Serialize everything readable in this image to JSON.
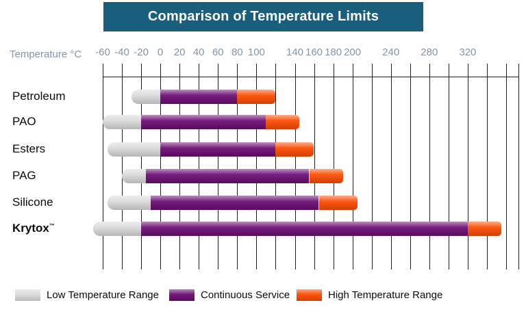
{
  "title_bar": {
    "text": "Comparison of Temperature Limits",
    "bg_color": "#1A5E7D",
    "text_color": "#ffffff"
  },
  "axis": {
    "label": "Temperature °C",
    "label_color": "#8295A8",
    "tick_values": [
      -60,
      -40,
      -20,
      0,
      20,
      40,
      60,
      80,
      100,
      140,
      160,
      180,
      200,
      240,
      280,
      320
    ],
    "grid_min": -60,
    "grid_max": 360,
    "grid_step": 20
  },
  "legend": {
    "items": [
      {
        "label": "Low Temperature Range",
        "color": "#d9d9d9"
      },
      {
        "label": "Continuous Service",
        "color": "#6b0b72"
      },
      {
        "label": "High Temperature Range",
        "color": "#fb4b00"
      }
    ]
  },
  "chart_data": {
    "type": "bar",
    "orientation": "horizontal",
    "title": "Comparison of Temperature Limits",
    "xlabel": "Temperature °C",
    "xlim": [
      -60,
      360
    ],
    "x_ticks": [
      -60,
      -40,
      -20,
      0,
      20,
      40,
      60,
      80,
      100,
      140,
      160,
      180,
      200,
      240,
      280,
      320
    ],
    "grid": true,
    "legend_position": "bottom",
    "categories": [
      "Petroleum",
      "PAO",
      "Esters",
      "PAG",
      "Silicone",
      "Krytox™"
    ],
    "colors": {
      "low": "#d9d9d9",
      "continuous": "#6b0b72",
      "high": "#fb4b00"
    },
    "rows": [
      {
        "label": "Petroleum",
        "trademark": "",
        "bold": false,
        "low_temperature_range": [
          -30,
          0
        ],
        "continuous_service": [
          0,
          80
        ],
        "high_temperature_range": [
          80,
          120
        ]
      },
      {
        "label": "PAO",
        "trademark": "",
        "bold": false,
        "low_temperature_range": [
          -60,
          -20
        ],
        "continuous_service": [
          -20,
          110
        ],
        "high_temperature_range": [
          110,
          145
        ]
      },
      {
        "label": "Esters",
        "trademark": "",
        "bold": false,
        "low_temperature_range": [
          -55,
          0
        ],
        "continuous_service": [
          0,
          120
        ],
        "high_temperature_range": [
          120,
          160
        ]
      },
      {
        "label": "PAG",
        "trademark": "",
        "bold": false,
        "low_temperature_range": [
          -40,
          -15
        ],
        "continuous_service": [
          -15,
          155
        ],
        "high_temperature_range": [
          155,
          190
        ]
      },
      {
        "label": "Silicone",
        "trademark": "",
        "bold": false,
        "low_temperature_range": [
          -55,
          -10
        ],
        "continuous_service": [
          -10,
          165
        ],
        "high_temperature_range": [
          165,
          205
        ]
      },
      {
        "label": "Krytox",
        "trademark": "™",
        "bold": true,
        "low_temperature_range": [
          -70,
          -20
        ],
        "continuous_service": [
          -20,
          320
        ],
        "high_temperature_range": [
          320,
          355
        ]
      }
    ]
  }
}
